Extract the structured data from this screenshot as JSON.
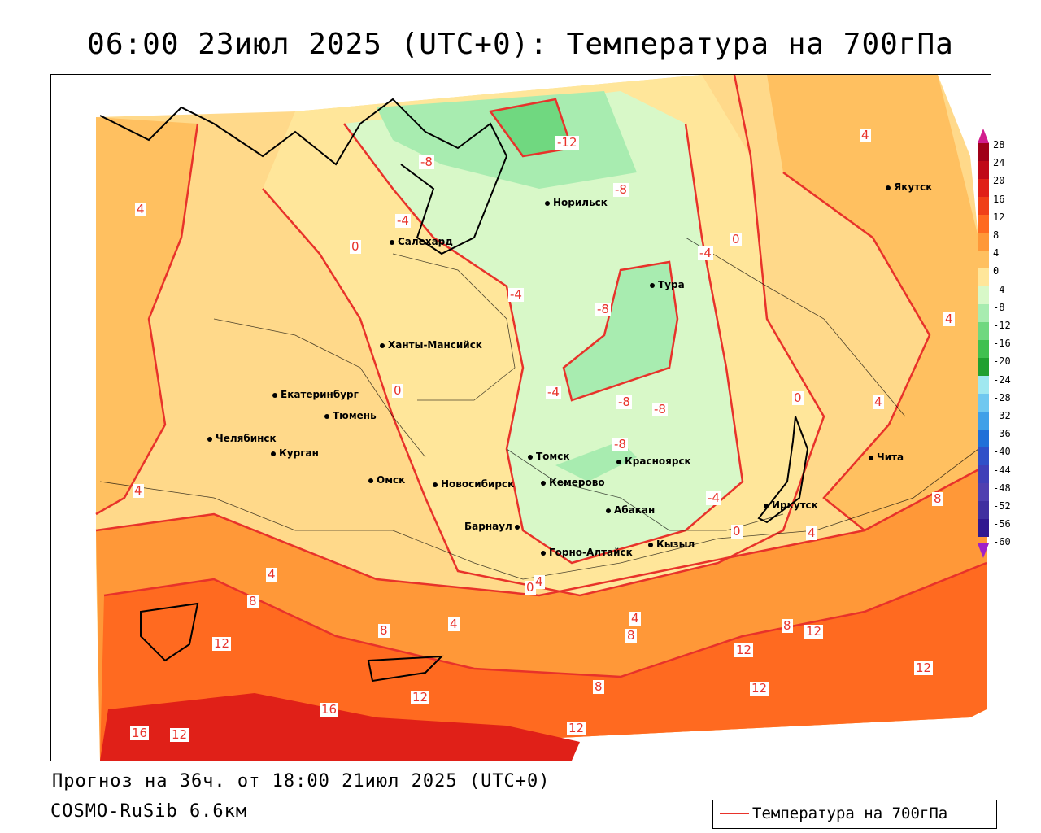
{
  "title": "06:00 23июл 2025 (UTC+0): Температура на 700гПа",
  "footer": {
    "forecast": "Прогноз на 36ч. от 18:00 21июл 2025 (UTC+0)",
    "model": "COSMO-RuSib 6.6км"
  },
  "legend": {
    "label": "Температура на 700гПа",
    "line_color": "#e8322a"
  },
  "colorbar": {
    "ticks": [
      "28",
      "24",
      "20",
      "16",
      "12",
      "8",
      "4",
      "0",
      "-4",
      "-8",
      "-12",
      "-16",
      "-20",
      "-24",
      "-28",
      "-32",
      "-36",
      "-40",
      "-44",
      "-48",
      "-52",
      "-56",
      "-60"
    ],
    "colors": [
      "#a00018",
      "#c00818",
      "#e02018",
      "#f04018",
      "#ff6a20",
      "#ff9838",
      "#ffc060",
      "#ffe69a",
      "#d8f8c8",
      "#a8ecb0",
      "#70d880",
      "#40c050",
      "#20a030",
      "#a0e8f0",
      "#70c8f0",
      "#40a0e8",
      "#2070d8",
      "#3050c8",
      "#4040b8",
      "#5040b0",
      "#4030a0",
      "#301890"
    ]
  },
  "cities": [
    {
      "name": "Норильск"
    },
    {
      "name": "Якутск"
    },
    {
      "name": "Салехард"
    },
    {
      "name": "Тура"
    },
    {
      "name": "Ханты-Мансийск"
    },
    {
      "name": "Екатеринбург"
    },
    {
      "name": "Тюмень"
    },
    {
      "name": "Челябинск"
    },
    {
      "name": "Курган"
    },
    {
      "name": "Омск"
    },
    {
      "name": "Новосибирск"
    },
    {
      "name": "Томск"
    },
    {
      "name": "Кемерово"
    },
    {
      "name": "Красноярск"
    },
    {
      "name": "Барнаул"
    },
    {
      "name": "Абакан"
    },
    {
      "name": "Горно-Алтайск"
    },
    {
      "name": "Кызыл"
    },
    {
      "name": "Иркутск"
    },
    {
      "name": "Чита"
    }
  ],
  "contour_labels": [
    {
      "text": "-12"
    },
    {
      "text": "-8"
    },
    {
      "text": "-8"
    },
    {
      "text": "-4"
    },
    {
      "text": "0"
    },
    {
      "text": "-4"
    },
    {
      "text": "0"
    },
    {
      "text": "-4"
    },
    {
      "text": "-8"
    },
    {
      "text": "4"
    },
    {
      "text": "4"
    },
    {
      "text": "4"
    },
    {
      "text": "0"
    },
    {
      "text": "-4"
    },
    {
      "text": "-8"
    },
    {
      "text": "-8"
    },
    {
      "text": "-8"
    },
    {
      "text": "0"
    },
    {
      "text": "4"
    },
    {
      "text": "4"
    },
    {
      "text": "-4"
    },
    {
      "text": "0"
    },
    {
      "text": "4"
    },
    {
      "text": "8"
    },
    {
      "text": "4"
    },
    {
      "text": "0"
    },
    {
      "text": "4"
    },
    {
      "text": "8"
    },
    {
      "text": "8"
    },
    {
      "text": "4"
    },
    {
      "text": "8"
    },
    {
      "text": "4"
    },
    {
      "text": "12"
    },
    {
      "text": "8"
    },
    {
      "text": "12"
    },
    {
      "text": "12"
    },
    {
      "text": "12"
    },
    {
      "text": "8"
    },
    {
      "text": "12"
    },
    {
      "text": "12"
    },
    {
      "text": "16"
    },
    {
      "text": "16"
    },
    {
      "text": "12"
    },
    {
      "text": "12"
    }
  ]
}
